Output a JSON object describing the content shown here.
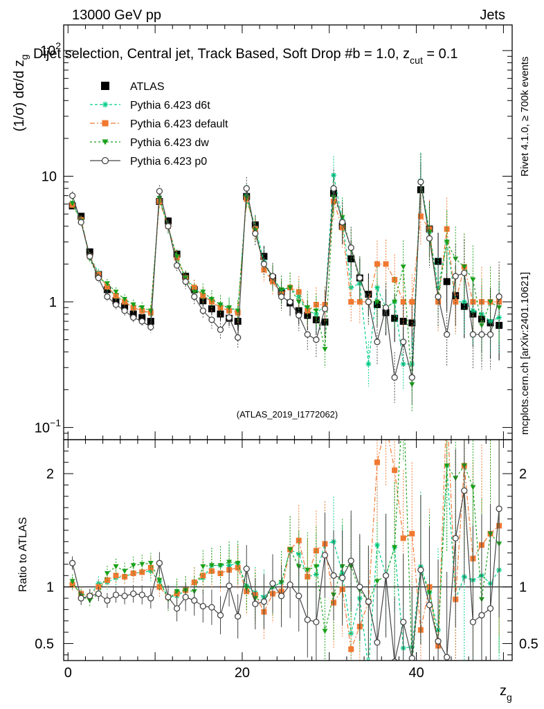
{
  "header": {
    "energy_label": "13000 GeV pp",
    "category_label": "Jets",
    "title": "Dijet selection, Central jet, Track Based, Soft Drop #b = 1.0, z",
    "title_sub": "cut",
    "title_tail": " = 0.1",
    "side_label_top": "Rivet 4.1.0, ≥ 700k events",
    "side_label_bottom": "mcplots.cern.ch [arXiv:2401.10621]",
    "analysis_id": "(ATLAS_2019_I1772062)"
  },
  "chart_data": {
    "type": "scatter",
    "title": "Dijet selection, Central jet, Track Based, Soft Drop #b = 1.0, z_cut = 0.1",
    "xlabel": "z",
    "xlabel_sub": "g",
    "ylabel_main": "(1/σ) dσ/d z",
    "ylabel_main_sub": "g",
    "ylabel_ratio": "Ratio to ATLAS",
    "xlim": [
      -0.5,
      51
    ],
    "ylim_main": [
      0.08,
      160
    ],
    "ylim_ratio": [
      0.35,
      2.3
    ],
    "yscale_main": "log",
    "x_ticks": [
      0,
      20,
      40
    ],
    "x_tick_labels": [
      "0",
      "20",
      "40"
    ],
    "y_ticks_main": [
      100,
      10,
      1,
      0.1
    ],
    "y_tick_labels_main": [
      {
        "base": "10",
        "exp": "2"
      },
      {
        "base": "10",
        "exp": ""
      },
      {
        "base": "1",
        "exp": ""
      },
      {
        "base": "10",
        "exp": "−1"
      }
    ],
    "y_ticks_ratio": [
      0.5,
      1,
      2
    ],
    "y_tick_labels_ratio": [
      "0.5",
      "1",
      "2"
    ],
    "legend_position": "top-left",
    "x": [
      0.5,
      1.5,
      2.5,
      3.5,
      4.5,
      5.5,
      6.5,
      7.5,
      8.5,
      9.5,
      10.5,
      11.5,
      12.5,
      13.5,
      14.5,
      15.5,
      16.5,
      17.5,
      18.5,
      19.5,
      20.5,
      21.5,
      22.5,
      23.5,
      24.5,
      25.5,
      26.5,
      27.5,
      28.5,
      29.5,
      30.5,
      31.5,
      32.5,
      33.5,
      34.5,
      35.5,
      36.5,
      37.5,
      38.5,
      39.5,
      40.5,
      41.5,
      42.5,
      43.5,
      44.5,
      45.5,
      46.5,
      47.5,
      48.5,
      49.5
    ],
    "series": [
      {
        "name": "ATLAS",
        "color": "#000000",
        "marker": "square",
        "values": [
          5.8,
          4.8,
          2.5,
          1.65,
          1.25,
          1.02,
          0.92,
          0.8,
          0.75,
          0.7,
          6.3,
          4.4,
          2.4,
          1.6,
          1.25,
          1.02,
          0.88,
          0.8,
          0.74,
          0.7,
          6.9,
          4.1,
          2.3,
          1.55,
          1.2,
          0.98,
          0.85,
          0.78,
          0.72,
          0.69,
          7.3,
          4.0,
          2.2,
          1.55,
          1.15,
          0.95,
          0.82,
          0.74,
          0.7,
          0.68,
          7.8,
          3.8,
          2.1,
          1.45,
          1.12,
          0.92,
          0.8,
          0.73,
          0.68,
          0.65
        ]
      },
      {
        "name": "Pythia 6.423 d6t",
        "color": "#00cc88",
        "marker": "asterisk",
        "values": [
          6.0,
          4.5,
          2.3,
          1.7,
          1.3,
          1.1,
          1.0,
          0.9,
          0.85,
          0.8,
          6.6,
          4.0,
          2.2,
          1.55,
          1.3,
          1.1,
          1.05,
          0.95,
          0.88,
          0.85,
          7.0,
          3.9,
          2.1,
          1.55,
          1.25,
          1.3,
          1.1,
          0.85,
          0.8,
          0.95,
          10.2,
          4.5,
          1.3,
          1.4,
          0.32,
          1.3,
          0.9,
          1.0,
          0.32,
          0.32,
          9.2,
          3.6,
          1.3,
          3.0,
          1.0,
          1.0,
          0.85,
          0.8,
          0.7,
          0.75
        ]
      },
      {
        "name": "Pythia 6.423 default",
        "color": "#f07830",
        "marker": "square",
        "values": [
          5.9,
          4.5,
          2.3,
          1.65,
          1.32,
          1.12,
          1.0,
          0.9,
          0.85,
          0.82,
          6.3,
          4.0,
          2.25,
          1.55,
          1.3,
          1.12,
          1.0,
          0.9,
          0.85,
          0.82,
          6.6,
          3.8,
          1.8,
          1.45,
          1.15,
          1.3,
          1.2,
          0.85,
          0.95,
          0.95,
          6.3,
          3.9,
          1.0,
          1.0,
          1.0,
          2.0,
          2.0,
          1.5,
          1.0,
          1.0,
          4.8,
          3.8,
          1.0,
          3.8,
          1.0,
          1.9,
          1.0,
          1.0,
          1.0,
          1.0
        ]
      },
      {
        "name": "Pythia 6.423 dw",
        "color": "#1aa01a",
        "marker": "triangle-down",
        "values": [
          6.1,
          4.4,
          2.2,
          1.55,
          1.4,
          1.2,
          1.05,
          0.95,
          0.9,
          0.85,
          6.7,
          3.9,
          2.3,
          1.55,
          1.2,
          1.2,
          1.05,
          0.95,
          0.9,
          0.85,
          6.8,
          3.7,
          2.0,
          1.55,
          1.25,
          1.3,
          1.0,
          0.9,
          0.85,
          0.42,
          6.8,
          4.7,
          2.6,
          1.5,
          1.0,
          1.0,
          0.9,
          1.0,
          1.9,
          0.22,
          9.0,
          3.6,
          1.1,
          3.0,
          2.2,
          1.9,
          1.5,
          0.65,
          1.0,
          0.9
        ]
      },
      {
        "name": "Pythia 6.423 p0",
        "color": "#444444",
        "marker": "circle-open",
        "values": [
          7.0,
          4.3,
          2.3,
          1.55,
          1.1,
          0.95,
          0.85,
          0.75,
          0.7,
          0.63,
          7.6,
          4.0,
          1.95,
          1.45,
          1.1,
          0.85,
          0.72,
          0.6,
          0.75,
          0.52,
          8.0,
          3.5,
          2.0,
          1.6,
          1.1,
          1.0,
          0.78,
          0.55,
          0.5,
          0.88,
          8.0,
          4.3,
          2.7,
          1.55,
          1.0,
          0.48,
          0.9,
          0.25,
          0.48,
          0.25,
          9.0,
          3.2,
          1.1,
          0.55,
          1.6,
          1.7,
          0.55,
          0.55,
          0.55,
          1.1
        ]
      }
    ],
    "ratio_series": [
      {
        "name": "Pythia 6.423 d6t",
        "values": [
          1.03,
          0.94,
          0.92,
          1.03,
          1.04,
          1.08,
          1.09,
          1.12,
          1.13,
          1.14,
          1.05,
          0.91,
          0.92,
          0.97,
          1.04,
          1.08,
          1.19,
          1.19,
          1.19,
          1.21,
          1.01,
          0.95,
          0.91,
          1.0,
          1.04,
          1.33,
          1.29,
          1.09,
          1.11,
          1.38,
          1.4,
          1.12,
          0.59,
          0.9,
          0.28,
          1.37,
          1.1,
          1.35,
          0.46,
          0.47,
          1.18,
          0.95,
          0.62,
          2.07,
          0.89,
          1.09,
          1.06,
          1.1,
          1.03,
          1.15
        ]
      },
      {
        "name": "Pythia 6.423 default",
        "values": [
          1.02,
          0.94,
          0.92,
          1.0,
          1.06,
          1.1,
          1.09,
          1.12,
          1.13,
          1.17,
          1.0,
          0.91,
          0.94,
          0.97,
          1.04,
          1.1,
          1.14,
          1.12,
          1.15,
          1.17,
          0.96,
          0.93,
          0.78,
          0.94,
          0.96,
          1.33,
          1.41,
          1.09,
          1.32,
          1.38,
          0.86,
          0.98,
          0.45,
          0.65,
          0.87,
          2.1,
          2.44,
          2.03,
          1.43,
          1.47,
          0.62,
          1.0,
          0.48,
          2.62,
          0.89,
          2.07,
          1.25,
          1.37,
          1.47,
          1.54
        ]
      },
      {
        "name": "Pythia 6.423 dw",
        "values": [
          1.05,
          0.92,
          0.88,
          0.94,
          1.12,
          1.18,
          1.14,
          1.19,
          1.2,
          1.21,
          1.06,
          0.89,
          0.96,
          0.97,
          0.96,
          1.18,
          1.19,
          1.19,
          1.22,
          1.21,
          0.99,
          0.9,
          0.87,
          1.0,
          1.04,
          1.33,
          1.18,
          1.15,
          1.18,
          0.61,
          0.93,
          1.18,
          1.18,
          0.97,
          0.87,
          1.05,
          1.1,
          1.35,
          2.71,
          0.32,
          1.15,
          0.95,
          0.52,
          2.07,
          1.96,
          2.07,
          1.88,
          0.89,
          1.47,
          1.38
        ]
      },
      {
        "name": "Pythia 6.423 p0",
        "values": [
          1.21,
          0.9,
          0.92,
          0.94,
          0.88,
          0.93,
          0.92,
          0.94,
          0.93,
          0.9,
          1.21,
          0.91,
          0.81,
          0.91,
          0.88,
          0.83,
          0.82,
          0.75,
          1.01,
          0.74,
          1.16,
          0.85,
          0.87,
          1.03,
          0.92,
          1.02,
          0.92,
          0.71,
          0.69,
          1.28,
          1.1,
          1.08,
          1.23,
          1.0,
          0.87,
          0.51,
          1.1,
          0.34,
          0.69,
          0.37,
          1.15,
          0.84,
          0.52,
          0.38,
          1.43,
          1.85,
          0.69,
          0.75,
          0.81,
          1.69
        ]
      }
    ]
  }
}
